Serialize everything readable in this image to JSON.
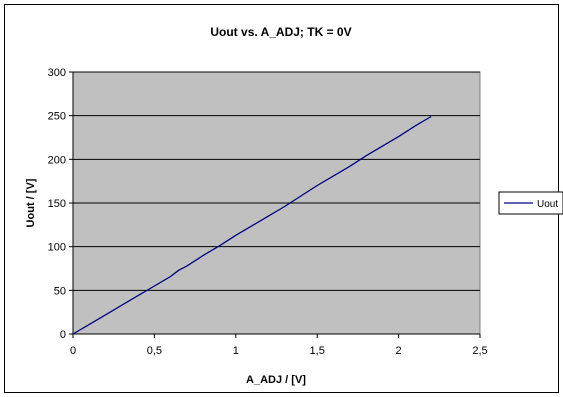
{
  "chart_data": {
    "type": "line",
    "title": "Uout vs. A_ADJ; TK = 0V",
    "xlabel": "A_ADJ / [V]",
    "ylabel": "Uout / [V]",
    "xlim": [
      0,
      2.5
    ],
    "ylim": [
      0,
      300
    ],
    "x_ticks": [
      0,
      0.5,
      1,
      1.5,
      2,
      2.5
    ],
    "x_tick_labels": [
      "0",
      "0,5",
      "1",
      "1,5",
      "2",
      "2,5"
    ],
    "y_ticks": [
      0,
      50,
      100,
      150,
      200,
      250,
      300
    ],
    "y_tick_labels": [
      "0",
      "50",
      "100",
      "150",
      "200",
      "250",
      "300"
    ],
    "grid": "horizontal",
    "plot_background": "#c0c0c0",
    "legend_position": "right",
    "series": [
      {
        "name": "Uout",
        "color": "#000080",
        "x": [
          0,
          0.1,
          0.2,
          0.3,
          0.4,
          0.5,
          0.6,
          0.65,
          0.7,
          0.8,
          0.9,
          1.0,
          1.1,
          1.2,
          1.3,
          1.4,
          1.5,
          1.6,
          1.7,
          1.8,
          1.9,
          2.0,
          2.1,
          2.2
        ],
        "y": [
          0,
          11,
          22,
          33,
          44,
          55,
          66,
          73,
          78,
          90,
          101,
          113,
          124,
          135,
          146,
          158,
          170,
          181,
          192,
          204,
          215,
          226,
          238,
          249
        ]
      }
    ]
  }
}
